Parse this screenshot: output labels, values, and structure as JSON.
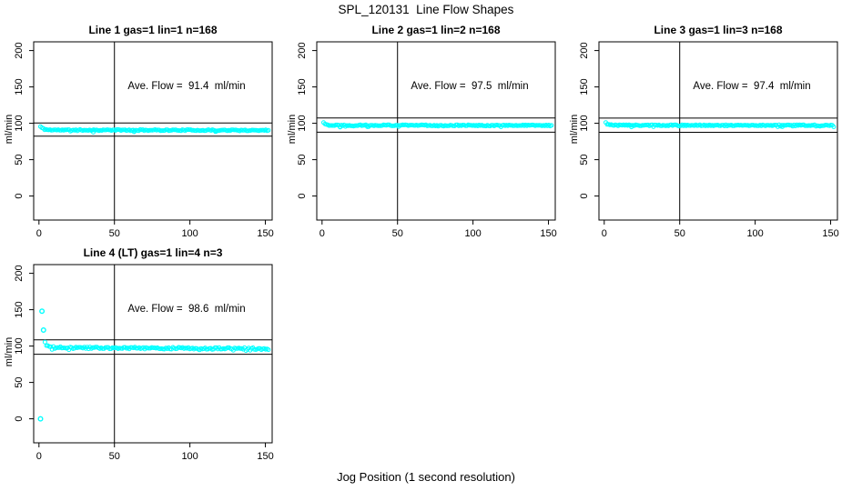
{
  "page": {
    "main_title": "SPL_120131  Line Flow Shapes",
    "x_axis_label": "Jog Position (1 second resolution)",
    "background_color": "#ffffff"
  },
  "style": {
    "point_color": "#00ffff",
    "line_color": "#000000",
    "point_radius": 2
  },
  "chart_data": [
    {
      "type": "scatter",
      "title": "Line 1 gas=1 lin=1 n=168",
      "annotation": "Ave. Flow =  91.4  ml/min",
      "ave_flow": 91.4,
      "n": 168,
      "ylabel": "ml/min",
      "xlim": [
        -3.5,
        154.5
      ],
      "ylim": [
        -33,
        212
      ],
      "xticks": [
        0,
        50,
        100,
        150
      ],
      "yticks": [
        0,
        50,
        100,
        150,
        200
      ],
      "vline_x": 50,
      "hlines": [
        100.5,
        82.3
      ],
      "band": {
        "x_start": 1,
        "x_end": 152,
        "n": 168,
        "y_start": 95.5,
        "y_settle": 90.8,
        "y_end": 90.4,
        "noise": 0.8,
        "seed": 11
      },
      "low_dips": [
        [
          36,
          87.8
        ],
        [
          63,
          88.2
        ],
        [
          117,
          88.5
        ]
      ],
      "outliers": []
    },
    {
      "type": "scatter",
      "title": "Line 2 gas=1 lin=2 n=168",
      "annotation": "Ave. Flow =  97.5  ml/min",
      "ave_flow": 97.5,
      "n": 168,
      "ylabel": "ml/min",
      "xlim": [
        -3.5,
        154.5
      ],
      "ylim": [
        -33,
        212
      ],
      "xticks": [
        0,
        50,
        100,
        150
      ],
      "yticks": [
        0,
        50,
        100,
        150,
        200
      ],
      "vline_x": 50,
      "hlines": [
        107.3,
        87.8
      ],
      "band": {
        "x_start": 1,
        "x_end": 152,
        "n": 168,
        "y_start": 100.8,
        "y_settle": 97.3,
        "y_end": 97.0,
        "noise": 0.8,
        "seed": 22
      },
      "low_dips": [
        [
          12,
          94.8
        ],
        [
          30,
          95.2
        ]
      ],
      "outliers": []
    },
    {
      "type": "scatter",
      "title": "Line 3 gas=1 lin=3 n=168",
      "annotation": "Ave. Flow =  97.4  ml/min",
      "ave_flow": 97.4,
      "n": 168,
      "ylabel": "ml/min",
      "xlim": [
        -3.5,
        154.5
      ],
      "ylim": [
        -33,
        212
      ],
      "xticks": [
        0,
        50,
        100,
        150
      ],
      "yticks": [
        0,
        50,
        100,
        150,
        200
      ],
      "vline_x": 50,
      "hlines": [
        107.1,
        87.7
      ],
      "band": {
        "x_start": 1,
        "x_end": 152,
        "n": 168,
        "y_start": 101.0,
        "y_settle": 97.3,
        "y_end": 97.1,
        "noise": 0.8,
        "seed": 33
      },
      "low_dips": [
        [
          18,
          95.0
        ],
        [
          118,
          95.2
        ]
      ],
      "outliers": []
    },
    {
      "type": "scatter",
      "title": "Line 4 (LT) gas=1 lin=4 n=3",
      "annotation": "Ave. Flow =  98.6  ml/min",
      "ave_flow": 98.6,
      "n": 3,
      "ylabel": "ml/min",
      "xlim": [
        -3.5,
        154.5
      ],
      "ylim": [
        -33,
        212
      ],
      "xticks": [
        0,
        50,
        100,
        150
      ],
      "yticks": [
        0,
        50,
        100,
        150,
        200
      ],
      "vline_x": 50,
      "hlines": [
        108.5,
        88.7
      ],
      "band": {
        "x_start": 4,
        "x_end": 152,
        "n": 160,
        "y_start": 104.5,
        "y_settle": 97.8,
        "y_end": 96.3,
        "noise": 1.4,
        "seed": 44
      },
      "low_dips": [],
      "outliers": [
        [
          1,
          0
        ],
        [
          2,
          148
        ],
        [
          3,
          122
        ]
      ]
    }
  ]
}
